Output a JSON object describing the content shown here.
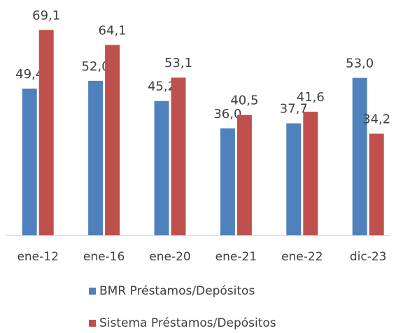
{
  "chart_data": {
    "type": "bar",
    "categories": [
      "ene-12",
      "ene-16",
      "ene-20",
      "ene-21",
      "ene-22",
      "dic-23"
    ],
    "series": [
      {
        "name": "BMR Préstamos/Depósitos",
        "color": "#4f81bd",
        "values": [
          49.4,
          52.0,
          45.2,
          36.0,
          37.7,
          53.0
        ],
        "value_labels": [
          "49,4",
          "52,0",
          "45,2",
          "36,0",
          "37,7",
          "53,0"
        ]
      },
      {
        "name": "Sistema Préstamos/Depósitos",
        "color": "#c0504d",
        "values": [
          69.1,
          64.1,
          53.1,
          40.5,
          41.6,
          34.2
        ],
        "value_labels": [
          "69,1",
          "64,1",
          "53,1",
          "40,5",
          "41,6",
          "34,2"
        ]
      }
    ],
    "ylim": [
      0,
      75
    ],
    "grid": false
  }
}
